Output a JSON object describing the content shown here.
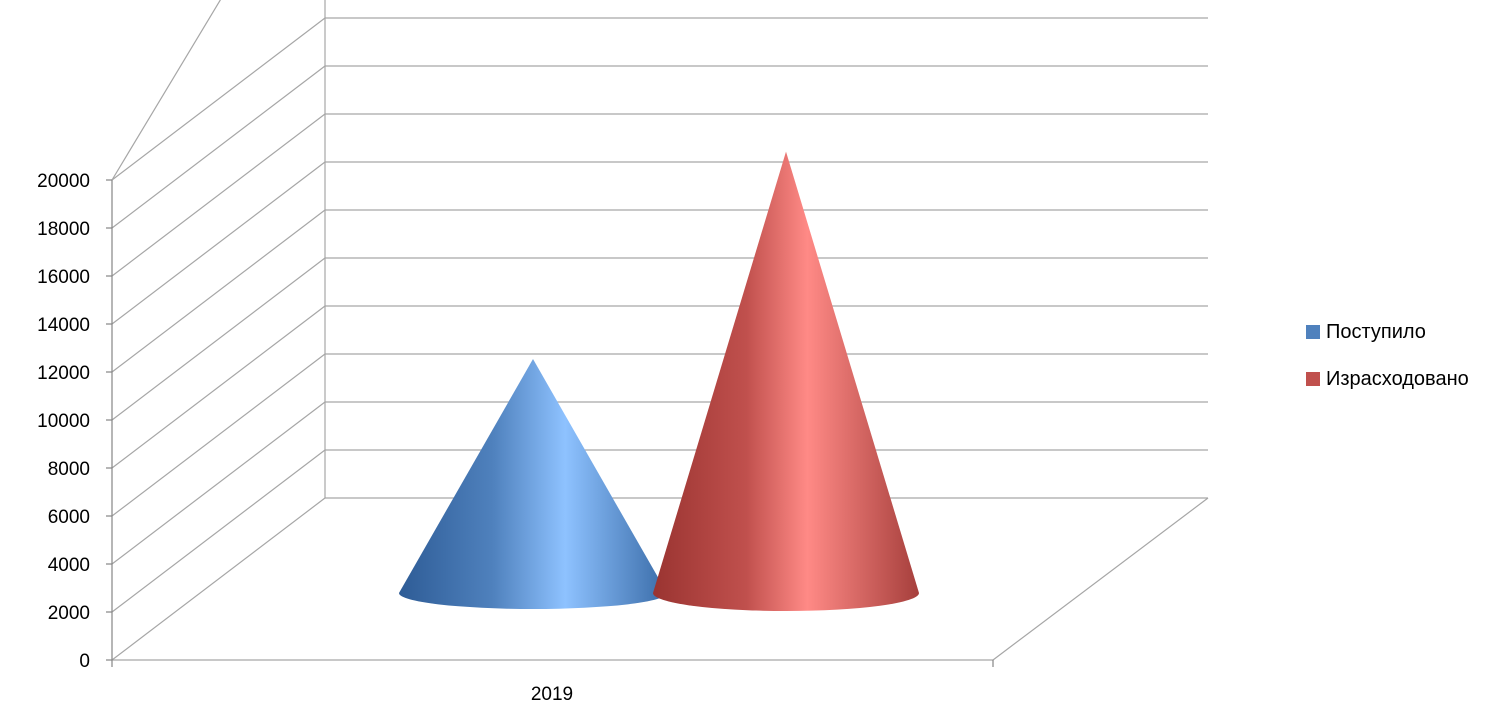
{
  "chart_data": {
    "type": "bar",
    "shape": "3d-cone",
    "categories": [
      "2019"
    ],
    "series": [
      {
        "name": "Поступило",
        "values": [
          11700
        ],
        "color": "#4F81BD"
      },
      {
        "name": "Израсходовано",
        "values": [
          20300
        ],
        "color": "#C0504D"
      }
    ],
    "yticks": [
      "0",
      "2000",
      "4000",
      "6000",
      "8000",
      "10000",
      "12000",
      "14000",
      "16000",
      "18000",
      "20000"
    ],
    "ylim": [
      0,
      20000
    ],
    "grid": true,
    "legend_position": "right"
  }
}
